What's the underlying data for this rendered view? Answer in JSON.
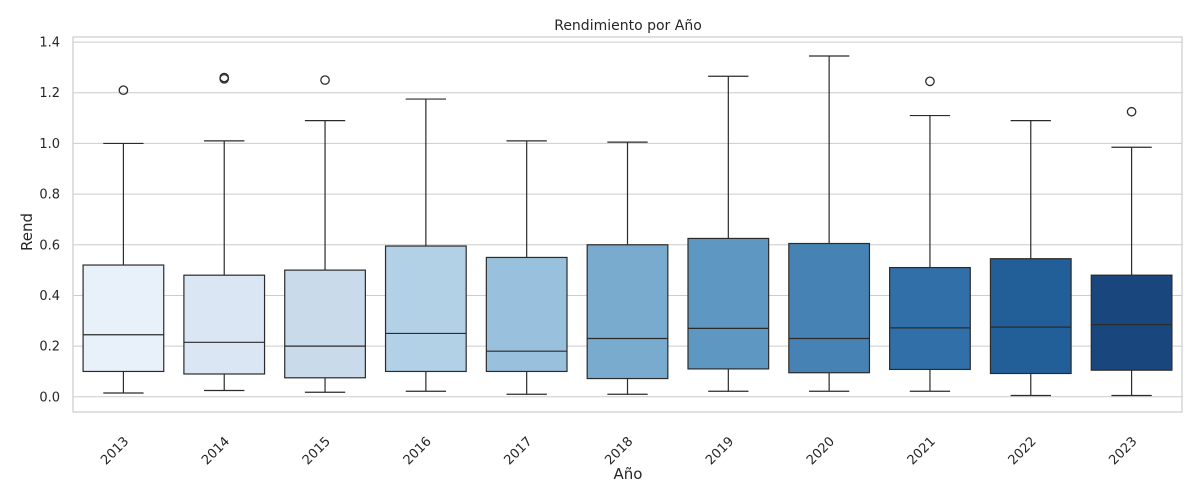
{
  "chart_data": {
    "type": "box",
    "title": "Rendimiento por Año",
    "xlabel": "Año",
    "ylabel": "Rend",
    "ylim": [
      -0.06,
      1.42
    ],
    "yticks": [
      0.0,
      0.2,
      0.4,
      0.6,
      0.8,
      1.0,
      1.2,
      1.4
    ],
    "ytick_labels": [
      "0.0",
      "0.2",
      "0.4",
      "0.6",
      "0.8",
      "1.0",
      "1.2",
      "1.4"
    ],
    "grid": "horizontal",
    "categories": [
      "2013",
      "2014",
      "2015",
      "2016",
      "2017",
      "2018",
      "2019",
      "2020",
      "2021",
      "2022",
      "2023"
    ],
    "boxes": [
      {
        "category": "2013",
        "whisker_low": 0.015,
        "q1": 0.1,
        "median": 0.245,
        "q3": 0.52,
        "whisker_high": 1.0,
        "outliers": [
          1.21
        ],
        "color": "#e8f0f9"
      },
      {
        "category": "2014",
        "whisker_low": 0.025,
        "q1": 0.09,
        "median": 0.215,
        "q3": 0.48,
        "whisker_high": 1.01,
        "outliers": [
          1.255,
          1.26
        ],
        "color": "#dae6f3"
      },
      {
        "category": "2015",
        "whisker_low": 0.018,
        "q1": 0.075,
        "median": 0.2,
        "q3": 0.5,
        "whisker_high": 1.09,
        "outliers": [
          1.25
        ],
        "color": "#c9dbeb"
      },
      {
        "category": "2016",
        "whisker_low": 0.022,
        "q1": 0.1,
        "median": 0.25,
        "q3": 0.595,
        "whisker_high": 1.175,
        "outliers": [],
        "color": "#b2d0e6"
      },
      {
        "category": "2017",
        "whisker_low": 0.01,
        "q1": 0.1,
        "median": 0.18,
        "q3": 0.55,
        "whisker_high": 1.01,
        "outliers": [],
        "color": "#99c0dc"
      },
      {
        "category": "2018",
        "whisker_low": 0.01,
        "q1": 0.072,
        "median": 0.23,
        "q3": 0.6,
        "whisker_high": 1.005,
        "outliers": [],
        "color": "#78abcd"
      },
      {
        "category": "2019",
        "whisker_low": 0.022,
        "q1": 0.11,
        "median": 0.27,
        "q3": 0.625,
        "whisker_high": 1.265,
        "outliers": [],
        "color": "#5e98c2"
      },
      {
        "category": "2020",
        "whisker_low": 0.022,
        "q1": 0.095,
        "median": 0.23,
        "q3": 0.605,
        "whisker_high": 1.345,
        "outliers": [],
        "color": "#4683b4"
      },
      {
        "category": "2021",
        "whisker_low": 0.022,
        "q1": 0.108,
        "median": 0.272,
        "q3": 0.51,
        "whisker_high": 1.11,
        "outliers": [
          1.245
        ],
        "color": "#316fa8"
      },
      {
        "category": "2022",
        "whisker_low": 0.005,
        "q1": 0.092,
        "median": 0.275,
        "q3": 0.545,
        "whisker_high": 1.09,
        "outliers": [],
        "color": "#225e97"
      },
      {
        "category": "2023",
        "whisker_low": 0.005,
        "q1": 0.105,
        "median": 0.285,
        "q3": 0.48,
        "whisker_high": 0.985,
        "outliers": [
          1.125
        ],
        "color": "#19477d"
      }
    ]
  }
}
